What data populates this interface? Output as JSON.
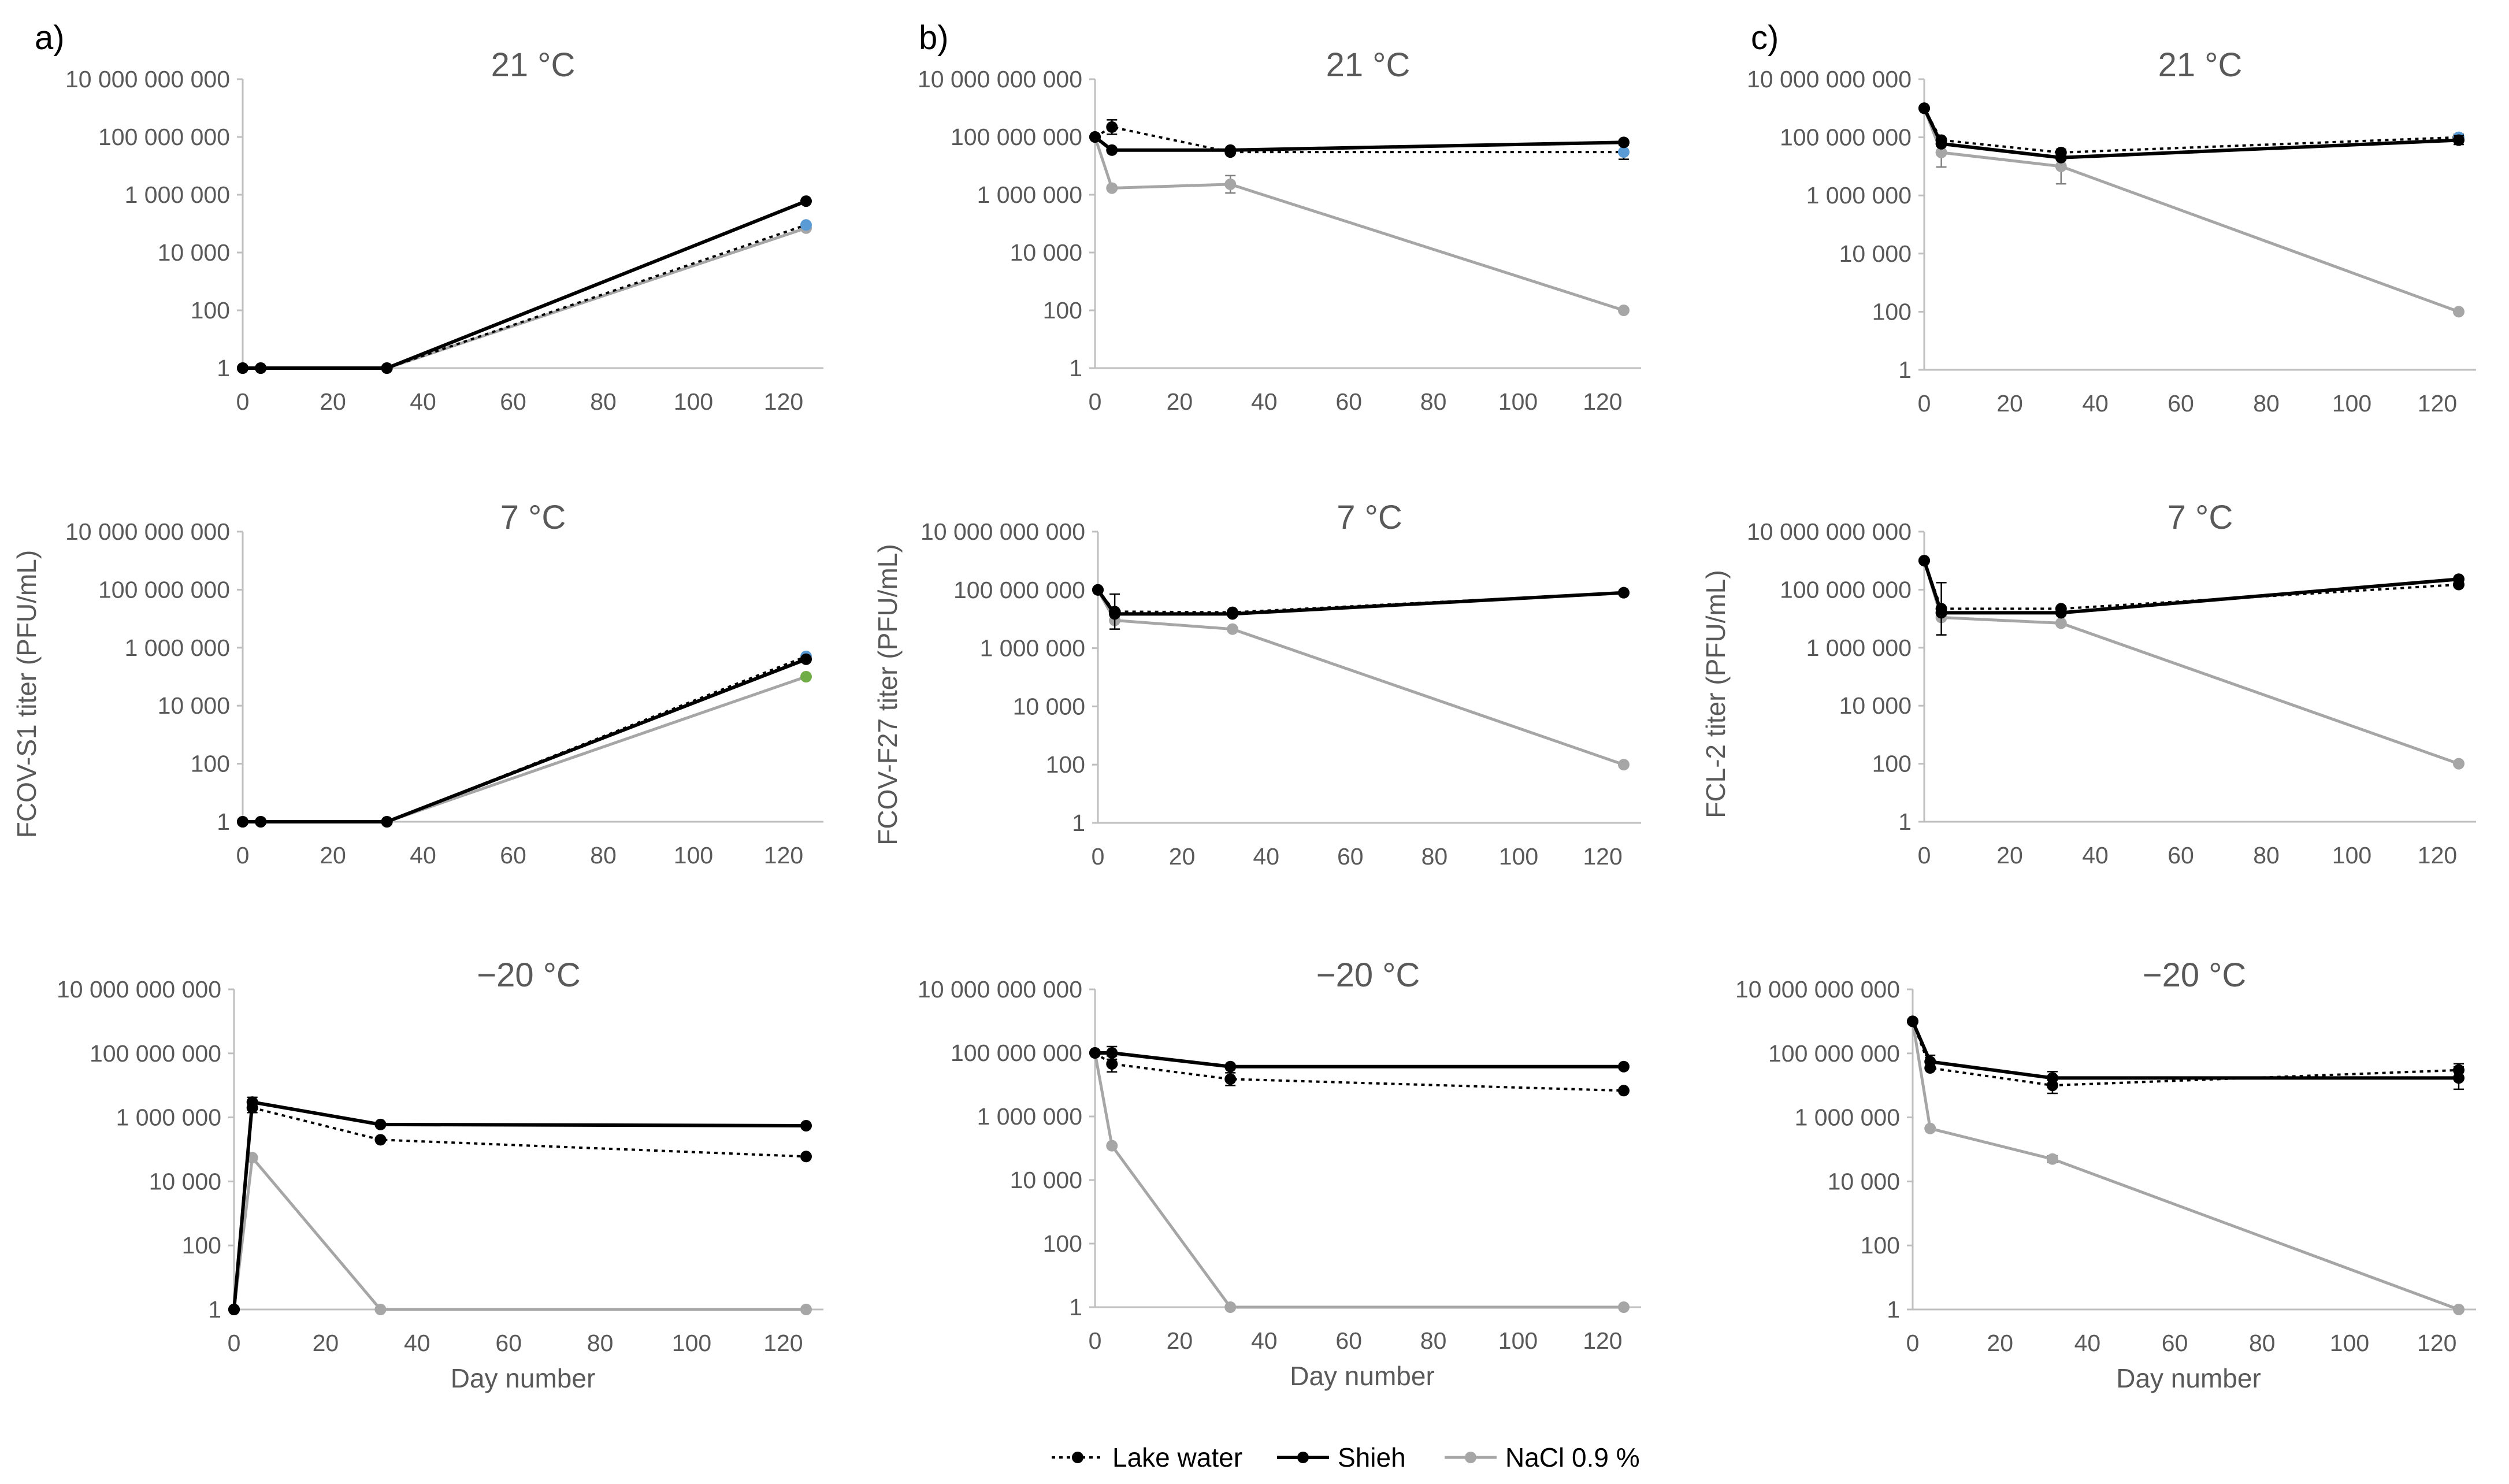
{
  "figure": {
    "legend": [
      {
        "name": "Lake water",
        "style": "dotted"
      },
      {
        "name": "Shieh",
        "style": "solid"
      },
      {
        "name": "NaCl 0.9 %",
        "style": "gray"
      }
    ],
    "colors": {
      "lake": "#000000",
      "shieh": "#000000",
      "nacl": "#a6a6a6",
      "axis": "#bfbfbf",
      "text": "#595959",
      "marker_blue": "#5b9bd5",
      "marker_green": "#70ad47"
    }
  },
  "chart_data": [
    {
      "panel": "a)",
      "type": "line",
      "title": "21 °C",
      "xlabel": "",
      "ylabel": "",
      "xlim": [
        0,
        125
      ],
      "ylim_log10": [
        0,
        10
      ],
      "xticks": [
        "0",
        "20",
        "40",
        "60",
        "80",
        "100",
        "120"
      ],
      "yticks": [
        "1",
        "100",
        "10 000",
        "1 000 000",
        "100 000 000",
        "10 000 000 000"
      ],
      "series": [
        {
          "name": "Lake water",
          "x": [
            0,
            4,
            32,
            125
          ],
          "y": [
            1,
            1,
            1,
            90000
          ],
          "err": [
            0,
            0,
            0,
            0
          ],
          "marker_color": "#5b9bd5"
        },
        {
          "name": "Shieh",
          "x": [
            0,
            4,
            32,
            125
          ],
          "y": [
            1,
            1,
            1,
            600000
          ],
          "err": [
            0,
            0,
            0,
            0
          ],
          "marker_color": "#000000"
        },
        {
          "name": "NaCl 0.9 %",
          "x": [
            0,
            4,
            32,
            125
          ],
          "y": [
            1,
            1,
            1,
            70000
          ],
          "err": [
            0,
            0,
            0,
            0
          ],
          "marker_color": "#a6a6a6"
        }
      ]
    },
    {
      "panel": "b)",
      "type": "line",
      "title": "21 °C",
      "xlabel": "",
      "ylabel": "",
      "xlim": [
        0,
        125
      ],
      "ylim_log10": [
        0,
        10
      ],
      "xticks": [
        "0",
        "20",
        "40",
        "60",
        "80",
        "100",
        "120"
      ],
      "yticks": [
        "1",
        "100",
        "10 000",
        "1 000 000",
        "100 000 000",
        "10 000 000 000"
      ],
      "series": [
        {
          "name": "Lake water",
          "x": [
            0,
            4,
            32,
            125
          ],
          "y": [
            100000000,
            220000000,
            30000000,
            30000000
          ],
          "err": [
            0,
            0.25,
            0,
            0.25
          ],
          "marker_color": "#5b9bd5"
        },
        {
          "name": "Shieh",
          "x": [
            0,
            4,
            32,
            125
          ],
          "y": [
            100000000,
            35000000,
            35000000,
            65000000
          ],
          "err": [
            0,
            0,
            0,
            0
          ],
          "marker_color": "#000000"
        },
        {
          "name": "NaCl 0.9 %",
          "x": [
            0,
            4,
            32,
            125
          ],
          "y": [
            100000000,
            1700000,
            2300000,
            100
          ],
          "err": [
            0,
            0,
            0.3,
            0
          ],
          "marker_color": "#a6a6a6"
        }
      ]
    },
    {
      "panel": "c)",
      "type": "line",
      "title": "21 °C",
      "xlabel": "",
      "ylabel": "",
      "xlim": [
        0,
        125
      ],
      "ylim_log10": [
        0,
        10
      ],
      "xticks": [
        "0",
        "20",
        "40",
        "60",
        "80",
        "100",
        "120"
      ],
      "yticks": [
        "1",
        "100",
        "10 000",
        "1 000 000",
        "100 000 000",
        "10 000 000 000"
      ],
      "series": [
        {
          "name": "Lake water",
          "x": [
            0,
            4,
            32,
            125
          ],
          "y": [
            1000000000,
            80000000,
            30000000,
            100000000
          ],
          "err": [
            0,
            0,
            0,
            0.1
          ],
          "marker_color": "#5b9bd5"
        },
        {
          "name": "Shieh",
          "x": [
            0,
            4,
            32,
            125
          ],
          "y": [
            1000000000,
            60000000,
            20000000,
            80000000
          ],
          "err": [
            0,
            0,
            0,
            0.15
          ],
          "marker_color": "#000000"
        },
        {
          "name": "NaCl 0.9 %",
          "x": [
            0,
            4,
            32,
            125
          ],
          "y": [
            1000000000,
            30000000,
            10000000,
            100
          ],
          "err": [
            0,
            0.5,
            0.6,
            0
          ],
          "marker_color": "#a6a6a6"
        }
      ]
    },
    {
      "panel": "",
      "type": "line",
      "title": "7 °C",
      "xlabel": "",
      "ylabel": "FCOV-S1 titer (PFU/mL)",
      "xlim": [
        0,
        125
      ],
      "ylim_log10": [
        0,
        10
      ],
      "xticks": [
        "0",
        "20",
        "40",
        "60",
        "80",
        "100",
        "120"
      ],
      "yticks": [
        "1",
        "100",
        "10 000",
        "1 000 000",
        "100 000 000",
        "10 000 000 000"
      ],
      "series": [
        {
          "name": "Lake water",
          "x": [
            0,
            4,
            32,
            125
          ],
          "y": [
            1,
            1,
            1,
            500000
          ],
          "err": [
            0,
            0,
            0,
            0
          ],
          "marker_color": "#5b9bd5"
        },
        {
          "name": "Shieh",
          "x": [
            0,
            4,
            32,
            125
          ],
          "y": [
            1,
            1,
            1,
            400000
          ],
          "err": [
            0,
            0,
            0,
            0
          ],
          "marker_color": "#000000"
        },
        {
          "name": "NaCl 0.9 %",
          "x": [
            0,
            4,
            32,
            125
          ],
          "y": [
            1,
            1,
            1,
            100000
          ],
          "err": [
            0,
            0,
            0,
            0
          ],
          "marker_color": "#70ad47"
        }
      ]
    },
    {
      "panel": "",
      "type": "line",
      "title": "7 °C",
      "xlabel": "",
      "ylabel": "FCOV-F27  titer (PFU/mL)",
      "xlim": [
        0,
        125
      ],
      "ylim_log10": [
        0,
        10
      ],
      "xticks": [
        "0",
        "20",
        "40",
        "60",
        "80",
        "100",
        "120"
      ],
      "yticks": [
        "1",
        "100",
        "10 000",
        "1 000 000",
        "100 000 000",
        "10 000 000 000"
      ],
      "series": [
        {
          "name": "Lake water",
          "x": [
            0,
            4,
            32,
            125
          ],
          "y": [
            100000000,
            18000000,
            17000000,
            80000000
          ],
          "err": [
            0,
            0.6,
            0,
            0
          ],
          "marker_color": "#000000"
        },
        {
          "name": "Shieh",
          "x": [
            0,
            4,
            32,
            125
          ],
          "y": [
            100000000,
            15000000,
            15000000,
            80000000
          ],
          "err": [
            0,
            0,
            0,
            0
          ],
          "marker_color": "#000000"
        },
        {
          "name": "NaCl 0.9 %",
          "x": [
            0,
            4,
            32,
            125
          ],
          "y": [
            100000000,
            9000000,
            4500000,
            100
          ],
          "err": [
            0,
            0,
            0,
            0
          ],
          "marker_color": "#a6a6a6"
        }
      ]
    },
    {
      "panel": "",
      "type": "line",
      "title": "7 °C",
      "xlabel": "",
      "ylabel": "FCL-2 titer (PFU/mL)",
      "xlim": [
        0,
        125
      ],
      "ylim_log10": [
        0,
        10
      ],
      "xticks": [
        "0",
        "20",
        "40",
        "60",
        "80",
        "100",
        "120"
      ],
      "yticks": [
        "1",
        "100",
        "10 000",
        "1 000 000",
        "100 000 000",
        "10 000 000 000"
      ],
      "series": [
        {
          "name": "Lake water",
          "x": [
            0,
            4,
            32,
            125
          ],
          "y": [
            1000000000,
            22000000,
            22000000,
            150000000
          ],
          "err": [
            0,
            0.9,
            0,
            0
          ],
          "marker_color": "#000000"
        },
        {
          "name": "Shieh",
          "x": [
            0,
            4,
            32,
            125
          ],
          "y": [
            1000000000,
            16000000,
            16000000,
            230000000
          ],
          "err": [
            0,
            0,
            0,
            0
          ],
          "marker_color": "#000000"
        },
        {
          "name": "NaCl 0.9 %",
          "x": [
            0,
            4,
            32,
            125
          ],
          "y": [
            1000000000,
            11000000,
            7000000,
            100
          ],
          "err": [
            0,
            0,
            0,
            0
          ],
          "marker_color": "#a6a6a6"
        }
      ]
    },
    {
      "panel": "",
      "type": "line",
      "title": "−20 °C",
      "xlabel": "Day number",
      "ylabel": "",
      "xlim": [
        0,
        125
      ],
      "ylim_log10": [
        0,
        10
      ],
      "xticks": [
        "0",
        "20",
        "40",
        "60",
        "80",
        "100",
        "120"
      ],
      "yticks": [
        "1",
        "100",
        "10 000",
        "1 000 000",
        "100 000 000",
        "10 000 000 000"
      ],
      "series": [
        {
          "name": "Lake water",
          "x": [
            0,
            4,
            32,
            125
          ],
          "y": [
            1,
            2000000,
            200000,
            60000
          ],
          "err": [
            0,
            0.15,
            0,
            0
          ],
          "marker_color": "#000000"
        },
        {
          "name": "Shieh",
          "x": [
            0,
            4,
            32,
            125
          ],
          "y": [
            1,
            3000000,
            600000,
            550000
          ],
          "err": [
            0,
            0.15,
            0,
            0
          ],
          "marker_color": "#000000"
        },
        {
          "name": "NaCl 0.9 %",
          "x": [
            0,
            4,
            32,
            125
          ],
          "y": [
            1,
            55000,
            1,
            1
          ],
          "err": [
            0,
            0,
            0,
            0
          ],
          "marker_color": "#a6a6a6"
        }
      ]
    },
    {
      "panel": "",
      "type": "line",
      "title": "−20 °C",
      "xlabel": "Day number",
      "ylabel": "",
      "xlim": [
        0,
        125
      ],
      "ylim_log10": [
        0,
        10
      ],
      "xticks": [
        "0",
        "20",
        "40",
        "60",
        "80",
        "100",
        "120"
      ],
      "yticks": [
        "1",
        "100",
        "10 000",
        "1 000 000",
        "100 000 000",
        "10 000 000 000"
      ],
      "series": [
        {
          "name": "Lake water",
          "x": [
            0,
            4,
            32,
            125
          ],
          "y": [
            100000000,
            45000000,
            15000000,
            6500000
          ],
          "err": [
            0,
            0.25,
            0.2,
            0
          ],
          "marker_color": "#000000"
        },
        {
          "name": "Shieh",
          "x": [
            0,
            4,
            32,
            125
          ],
          "y": [
            100000000,
            100000000,
            37000000,
            37000000
          ],
          "err": [
            0,
            0.2,
            0,
            0
          ],
          "marker_color": "#000000"
        },
        {
          "name": "NaCl 0.9 %",
          "x": [
            0,
            4,
            32,
            125
          ],
          "y": [
            100000000,
            120000,
            1,
            1
          ],
          "err": [
            0,
            0,
            0,
            0
          ],
          "marker_color": "#a6a6a6"
        }
      ]
    },
    {
      "panel": "",
      "type": "line",
      "title": "−20 °C",
      "xlabel": "Day number",
      "ylabel": "",
      "xlim": [
        0,
        125
      ],
      "ylim_log10": [
        0,
        10
      ],
      "xticks": [
        "0",
        "20",
        "40",
        "60",
        "80",
        "100",
        "120"
      ],
      "yticks": [
        "1",
        "100",
        "10 000",
        "1 000 000",
        "100 000 000",
        "10 000 000 000"
      ],
      "series": [
        {
          "name": "Lake water",
          "x": [
            0,
            4,
            32,
            125
          ],
          "y": [
            1000000000,
            35000000,
            10000000,
            30000000
          ],
          "err": [
            0,
            0,
            0.25,
            0.2
          ],
          "marker_color": "#000000"
        },
        {
          "name": "Shieh",
          "x": [
            0,
            4,
            32,
            125
          ],
          "y": [
            1000000000,
            55000000,
            17000000,
            17000000
          ],
          "err": [
            0,
            0.2,
            0.2,
            0.35
          ],
          "marker_color": "#000000"
        },
        {
          "name": "NaCl 0.9 %",
          "x": [
            0,
            4,
            32,
            125
          ],
          "y": [
            1000000000,
            450000,
            50000,
            1
          ],
          "err": [
            0,
            0,
            0.1,
            0
          ],
          "marker_color": "#a6a6a6"
        }
      ]
    }
  ]
}
